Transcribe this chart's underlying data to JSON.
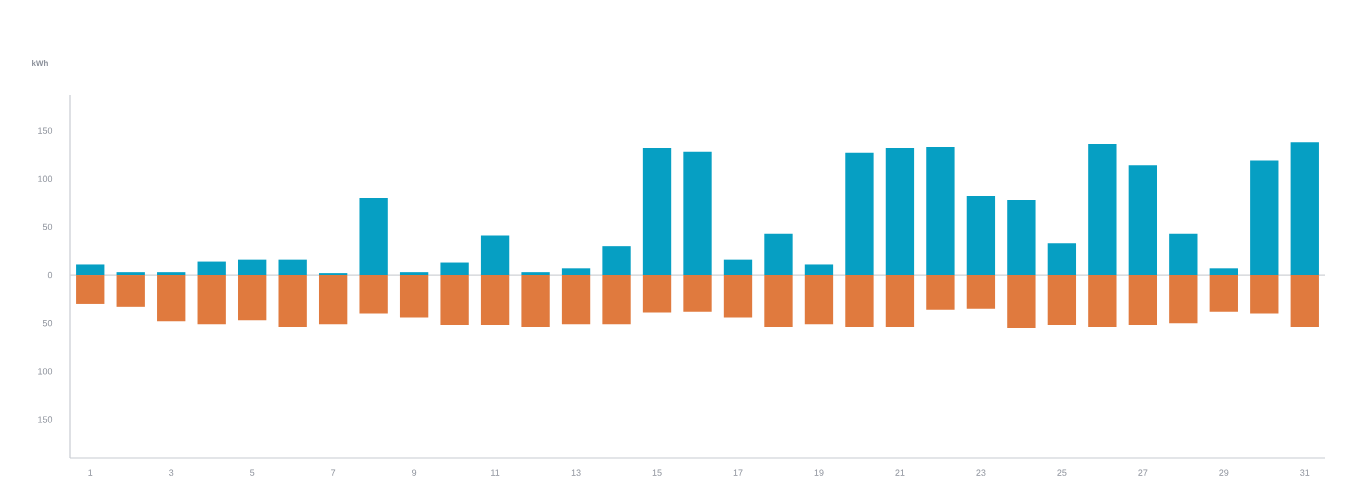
{
  "chart_data": {
    "type": "bar",
    "ylabel": "kWh",
    "categories": [
      "1",
      null,
      "3",
      null,
      "5",
      null,
      "7",
      null,
      "9",
      null,
      "11",
      null,
      "13",
      null,
      "15",
      null,
      "17",
      null,
      "19",
      null,
      "21",
      null,
      "23",
      null,
      "25",
      null,
      "27",
      null,
      "29",
      null,
      "31"
    ],
    "series": [
      {
        "color": "#069fc3",
        "values": [
          11,
          3,
          3,
          14,
          16,
          16,
          2,
          80,
          3,
          13,
          41,
          3,
          7,
          30,
          132,
          128,
          16,
          43,
          11,
          127,
          132,
          133,
          82,
          78,
          33,
          136,
          114,
          43,
          7,
          119,
          138
        ]
      },
      {
        "color": "#e07a3e",
        "values": [
          -30,
          -33,
          -48,
          -51,
          -47,
          -54,
          -51,
          -40,
          -44,
          -52,
          -52,
          -54,
          -51,
          -51,
          -39,
          -38,
          -44,
          -54,
          -51,
          -54,
          -54,
          -36,
          -35,
          -55,
          -52,
          -54,
          -52,
          -50,
          -38,
          -40,
          -54
        ]
      }
    ],
    "ylim": [
      -190,
      187
    ],
    "yticks": [
      {
        "value": -150,
        "label": "150"
      },
      {
        "value": -100,
        "label": "100"
      },
      {
        "value": -50,
        "label": "50"
      },
      0,
      50,
      100,
      150
    ],
    "ref_lines": [
      {
        "axis": "y",
        "value": 0,
        "color": "#cfd2d6"
      }
    ],
    "stacked": true
  }
}
